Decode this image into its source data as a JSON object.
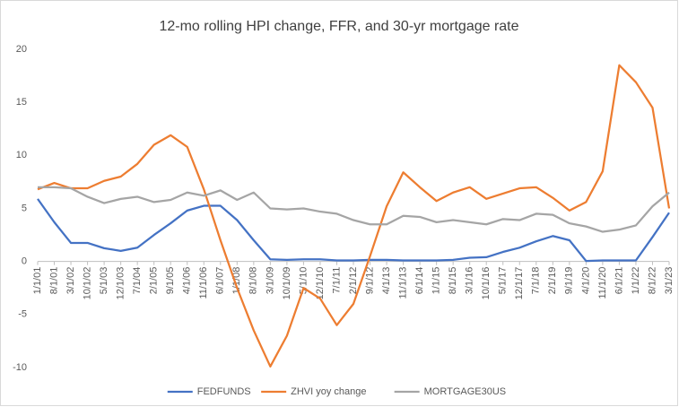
{
  "chart_data": {
    "type": "line",
    "title": "12-mo rolling HPI change, FFR, and 30-yr mortgage rate",
    "categories": [
      "1/1/01",
      "8/1/01",
      "3/1/02",
      "10/1/02",
      "5/1/03",
      "12/1/03",
      "7/1/04",
      "2/1/05",
      "9/1/05",
      "4/1/06",
      "11/1/06",
      "6/1/07",
      "1/1/08",
      "8/1/08",
      "3/1/09",
      "10/1/09",
      "5/1/10",
      "12/1/10",
      "7/1/11",
      "2/1/12",
      "9/1/12",
      "4/1/13",
      "11/1/13",
      "6/1/14",
      "1/1/15",
      "8/1/15",
      "3/1/16",
      "10/1/16",
      "5/1/17",
      "12/1/17",
      "7/1/18",
      "2/1/19",
      "9/1/19",
      "4/1/20",
      "11/1/20",
      "6/1/21",
      "1/1/22",
      "8/1/22",
      "3/1/23"
    ],
    "series": [
      {
        "name": "FEDFUNDS",
        "color": "#4472c4",
        "values": [
          5.9,
          3.7,
          1.75,
          1.75,
          1.25,
          1.0,
          1.3,
          2.5,
          3.6,
          4.8,
          5.25,
          5.25,
          3.9,
          2.0,
          0.2,
          0.15,
          0.2,
          0.2,
          0.1,
          0.1,
          0.15,
          0.15,
          0.1,
          0.1,
          0.1,
          0.15,
          0.35,
          0.4,
          0.9,
          1.3,
          1.9,
          2.4,
          2.0,
          0.05,
          0.1,
          0.1,
          0.1,
          2.3,
          4.6
        ]
      },
      {
        "name": "ZHVI yoy change",
        "color": "#ed7d31",
        "values": [
          6.8,
          7.4,
          6.9,
          6.9,
          7.6,
          8.0,
          9.2,
          11.0,
          11.9,
          10.8,
          6.8,
          2.0,
          -2.5,
          -6.5,
          -9.9,
          -7.0,
          -2.5,
          -3.5,
          -6.0,
          -4.0,
          0.5,
          5.2,
          8.4,
          7.0,
          5.7,
          6.5,
          7.0,
          5.9,
          6.4,
          6.9,
          7.0,
          6.0,
          4.8,
          5.6,
          8.5,
          18.5,
          16.9,
          14.5,
          5.0
        ]
      },
      {
        "name": "MORTGAGE30US",
        "color": "#a5a5a5",
        "values": [
          7.0,
          7.0,
          6.9,
          6.1,
          5.5,
          5.9,
          6.1,
          5.6,
          5.8,
          6.5,
          6.2,
          6.7,
          5.8,
          6.5,
          5.0,
          4.9,
          5.0,
          4.7,
          4.5,
          3.9,
          3.5,
          3.5,
          4.3,
          4.2,
          3.7,
          3.9,
          3.7,
          3.5,
          4.0,
          3.9,
          4.5,
          4.4,
          3.6,
          3.3,
          2.8,
          3.0,
          3.4,
          5.2,
          6.5
        ]
      }
    ],
    "ylim": [
      -10,
      20
    ],
    "yticks": [
      -10,
      -5,
      0,
      5,
      10,
      15,
      20
    ],
    "grid": false,
    "legend": "bottom"
  }
}
